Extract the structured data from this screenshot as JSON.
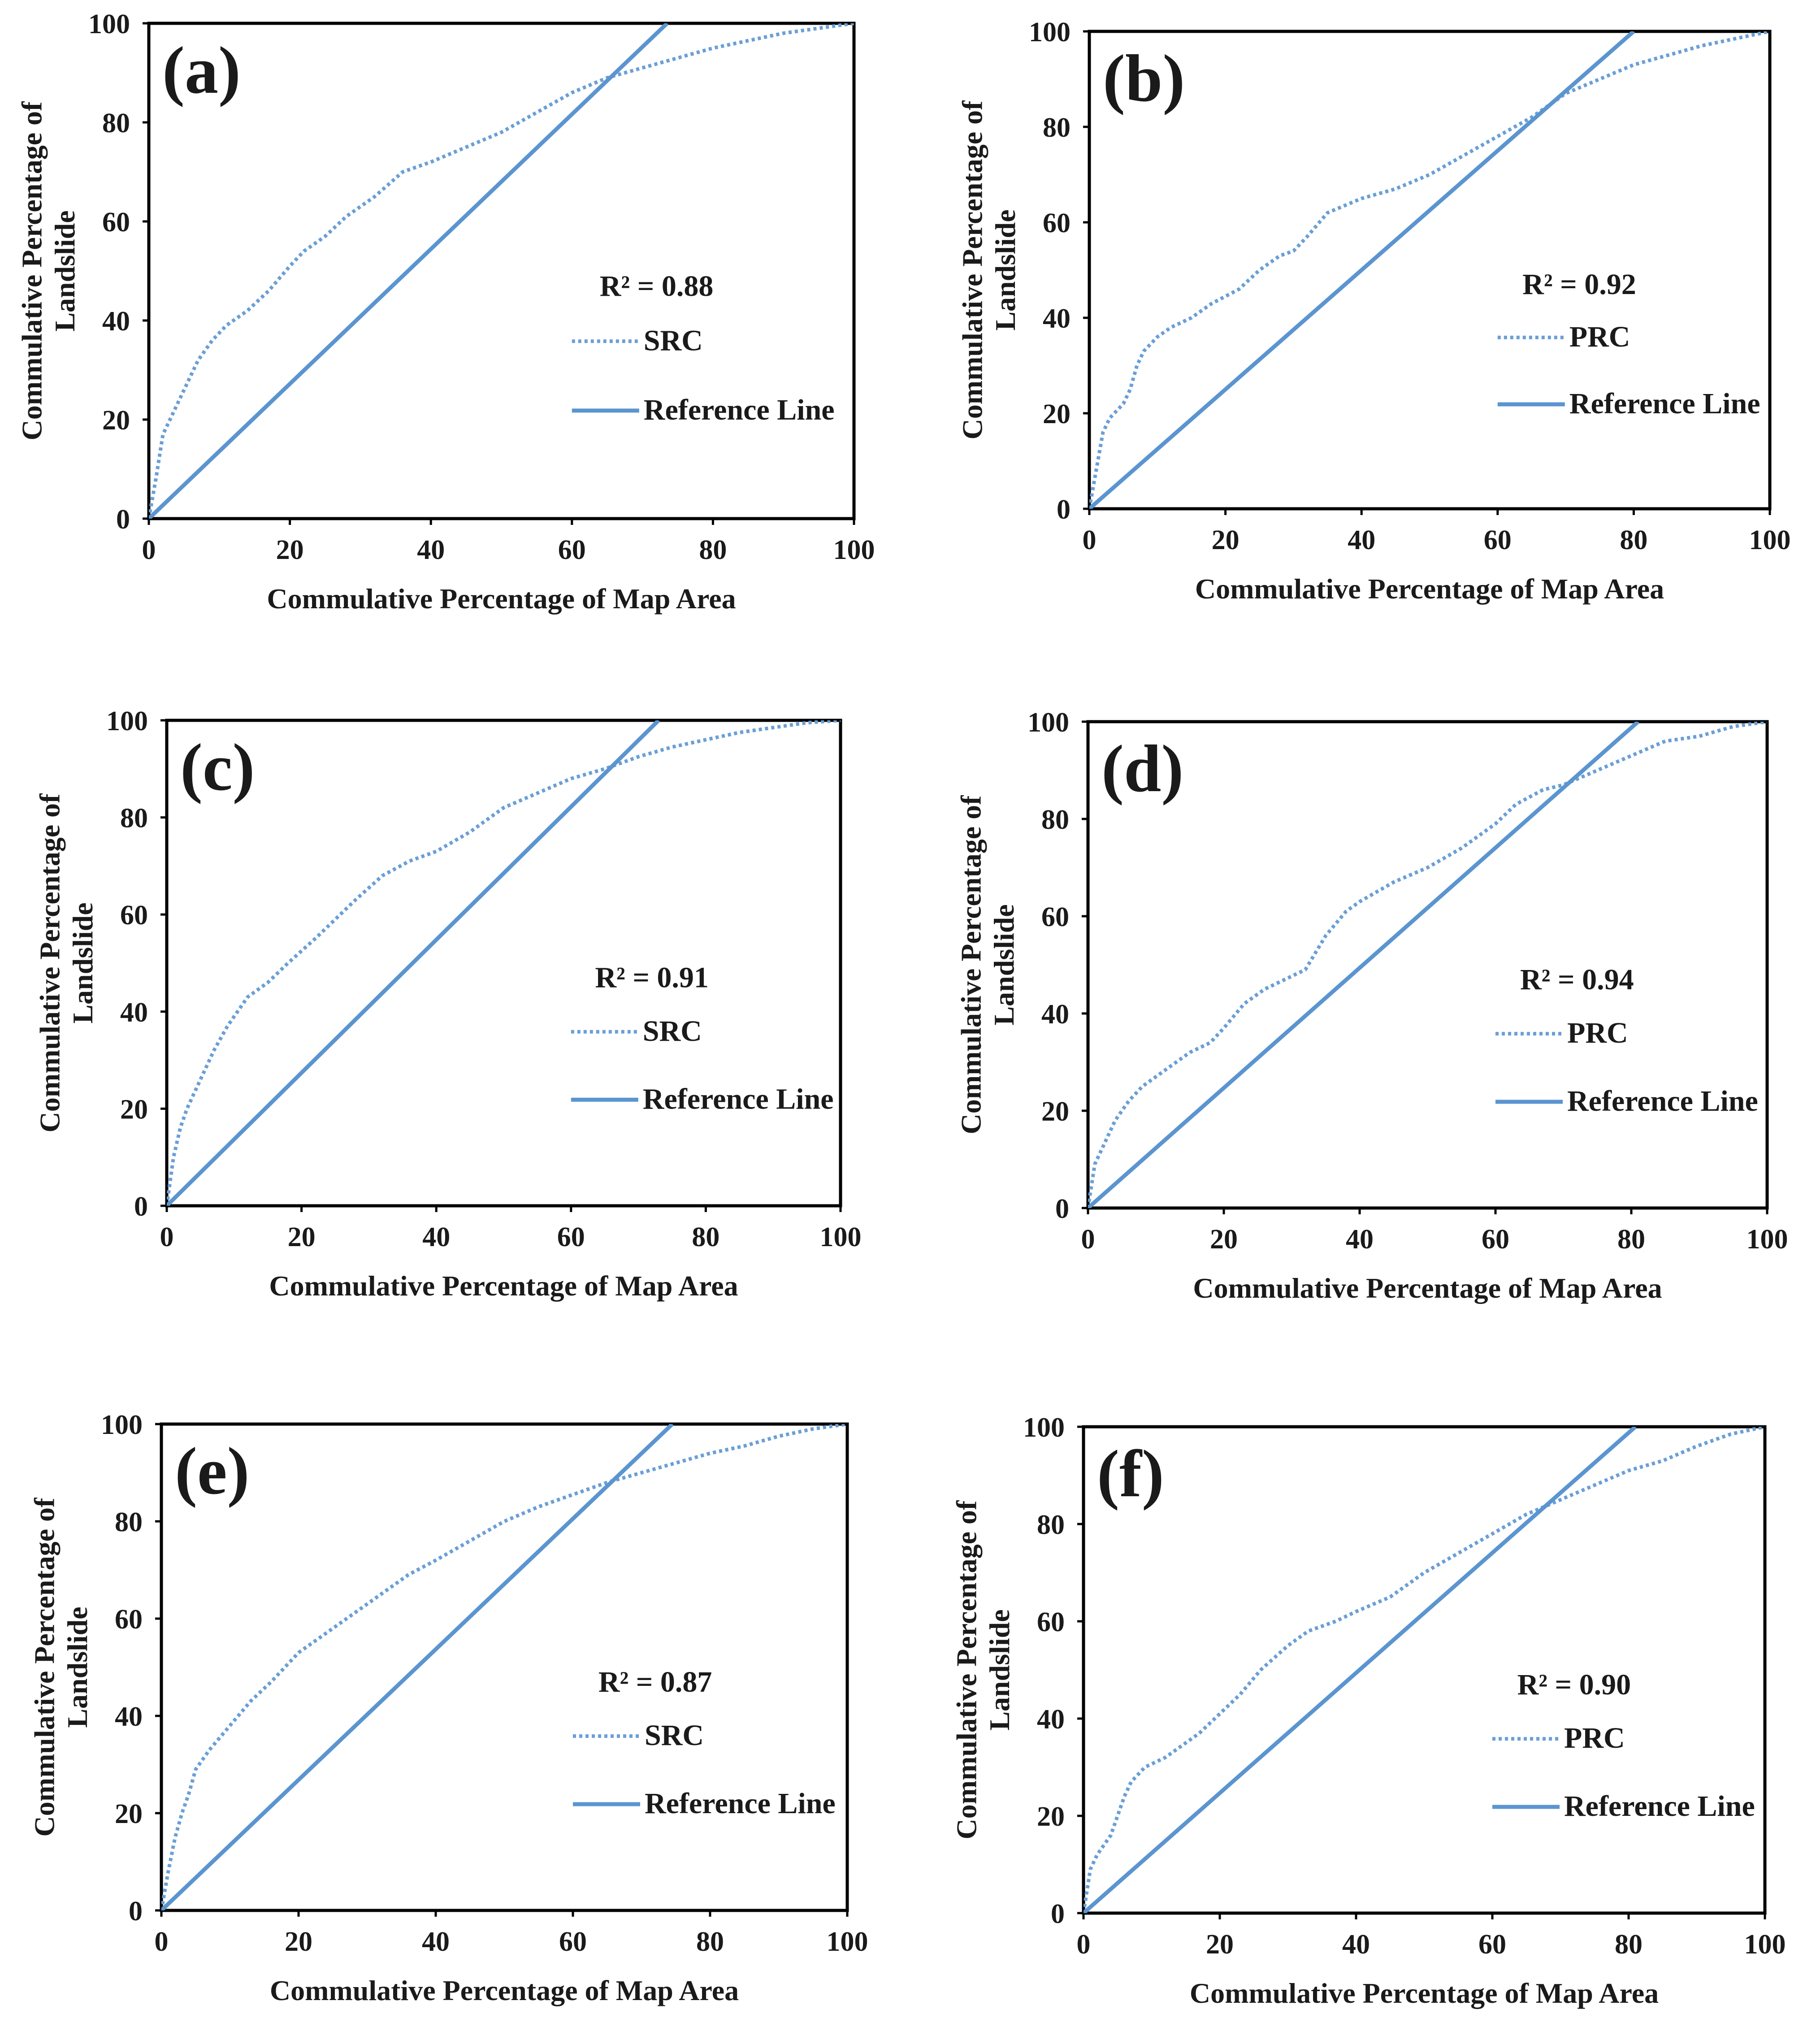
{
  "colors": {
    "curve": "#6a9fd6",
    "reference_line": "#5b95d0",
    "frame": "#000000",
    "text": "#1a1a1a"
  },
  "chart_data": [
    {
      "type": "line",
      "panel_label": "(a)",
      "xlabel": "Commulative Percentage of Map Area",
      "ylabel": "Commulative Percentage of Landslide",
      "xlim": [
        0,
        100
      ],
      "ylim": [
        0,
        100
      ],
      "x_ticks": [
        "0",
        "20",
        "40",
        "60",
        "80",
        "100"
      ],
      "y_ticks": [
        "0",
        "20",
        "40",
        "60",
        "80",
        "100"
      ],
      "annotation": "R² = 0.88",
      "legend": [
        "SRC",
        "Reference Line"
      ],
      "legend_position": "center-right",
      "grid": false,
      "series": [
        {
          "name": "SRC",
          "style": "dotted",
          "x": [
            0,
            1,
            2,
            3,
            5,
            7,
            9,
            11,
            14,
            17,
            20,
            22,
            25,
            28,
            32,
            36,
            40,
            45,
            50,
            55,
            60,
            65,
            70,
            75,
            80,
            85,
            90,
            95,
            100
          ],
          "y": [
            0,
            8,
            17,
            20,
            26,
            32,
            36,
            39,
            42,
            46,
            51,
            54,
            57,
            61,
            65,
            70,
            72,
            75,
            78,
            82,
            86,
            89,
            91,
            93,
            95,
            96.5,
            98,
            99,
            100
          ]
        },
        {
          "name": "Reference Line",
          "style": "solid",
          "x": [
            0,
            73.5
          ],
          "y": [
            0,
            100
          ]
        }
      ]
    },
    {
      "type": "line",
      "panel_label": "(b)",
      "xlabel": "Commulative Percentage of Map Area",
      "ylabel": "Commulative Percentage of Landslide",
      "xlim": [
        0,
        100
      ],
      "ylim": [
        0,
        100
      ],
      "x_ticks": [
        "0",
        "20",
        "40",
        "60",
        "80",
        "100"
      ],
      "y_ticks": [
        "0",
        "20",
        "40",
        "60",
        "80",
        "100"
      ],
      "annotation": "R² = 0.92",
      "legend": [
        "PRC",
        "Reference Line"
      ],
      "legend_position": "center-right",
      "grid": false,
      "series": [
        {
          "name": "PRC",
          "style": "dotted",
          "x": [
            0,
            1,
            2,
            3,
            5,
            6,
            7,
            8,
            10,
            12,
            15,
            18,
            22,
            25,
            28,
            30,
            32,
            35,
            40,
            45,
            50,
            55,
            60,
            65,
            70,
            75,
            80,
            85,
            90,
            95,
            100
          ],
          "y": [
            0,
            8,
            16,
            19,
            22,
            25,
            30,
            33,
            36,
            38,
            40,
            43,
            46,
            50,
            53,
            54,
            57,
            62,
            65,
            67,
            70,
            74,
            78,
            82,
            87,
            90,
            93,
            95,
            97,
            98.5,
            100
          ]
        },
        {
          "name": "Reference Line",
          "style": "solid",
          "x": [
            0,
            80
          ],
          "y": [
            0,
            100
          ]
        }
      ]
    },
    {
      "type": "line",
      "panel_label": "(c)",
      "xlabel": "Commulative Percentage of Map Area",
      "ylabel": "Commulative Percentage of Landslide",
      "xlim": [
        0,
        100
      ],
      "ylim": [
        0,
        100
      ],
      "x_ticks": [
        "0",
        "20",
        "40",
        "60",
        "80",
        "100"
      ],
      "y_ticks": [
        "0",
        "20",
        "40",
        "60",
        "80",
        "100"
      ],
      "annotation": "R² = 0.91",
      "legend": [
        "SRC",
        "Reference Line"
      ],
      "legend_position": "center-right",
      "grid": false,
      "series": [
        {
          "name": "SRC",
          "style": "dotted",
          "x": [
            0,
            1,
            2,
            3,
            5,
            7,
            9,
            12,
            15,
            18,
            22,
            25,
            28,
            32,
            36,
            40,
            45,
            50,
            55,
            60,
            65,
            70,
            75,
            80,
            85,
            90,
            95,
            100
          ],
          "y": [
            0,
            10,
            16,
            20,
            26,
            32,
            37,
            43,
            46,
            50,
            55,
            59,
            63,
            68,
            71,
            73,
            77,
            82,
            85,
            88,
            90,
            92.5,
            94.5,
            96,
            97.5,
            98.5,
            99.5,
            100
          ]
        },
        {
          "name": "Reference Line",
          "style": "solid",
          "x": [
            0,
            73
          ],
          "y": [
            0,
            100
          ]
        }
      ]
    },
    {
      "type": "line",
      "panel_label": "(d)",
      "xlabel": "Commulative Percentage of Map Area",
      "ylabel": "Commulative Percentage of Landslide",
      "xlim": [
        0,
        100
      ],
      "ylim": [
        0,
        100
      ],
      "x_ticks": [
        "0",
        "20",
        "40",
        "60",
        "80",
        "100"
      ],
      "y_ticks": [
        "0",
        "20",
        "40",
        "60",
        "80",
        "100"
      ],
      "annotation": "R² = 0.94",
      "legend": [
        "PRC",
        "Reference Line"
      ],
      "legend_position": "center-right",
      "grid": false,
      "series": [
        {
          "name": "PRC",
          "style": "dotted",
          "x": [
            0,
            1,
            2,
            4,
            6,
            8,
            10,
            13,
            15,
            18,
            20,
            23,
            26,
            29,
            32,
            35,
            38,
            40,
            45,
            50,
            55,
            60,
            63,
            67,
            70,
            75,
            80,
            85,
            90,
            95,
            100
          ],
          "y": [
            0,
            9,
            12,
            18,
            22,
            25,
            27,
            30,
            32,
            34,
            37,
            42,
            45,
            47,
            49,
            56,
            61,
            63,
            67,
            70,
            74,
            79,
            83,
            86,
            87,
            90,
            93,
            96,
            97,
            99,
            100
          ]
        },
        {
          "name": "Reference Line",
          "style": "solid",
          "x": [
            0,
            81
          ],
          "y": [
            0,
            100
          ]
        }
      ]
    },
    {
      "type": "line",
      "panel_label": "(e)",
      "xlabel": "Commulative Percentage of Map Area",
      "ylabel": "Commulative Percentage of Landslide",
      "xlim": [
        0,
        100
      ],
      "ylim": [
        0,
        100
      ],
      "x_ticks": [
        "0",
        "20",
        "40",
        "60",
        "80",
        "100"
      ],
      "y_ticks": [
        "0",
        "20",
        "40",
        "60",
        "80",
        "100"
      ],
      "annotation": "R² = 0.87",
      "legend": [
        "SRC",
        "Reference Line"
      ],
      "legend_position": "center-right",
      "grid": false,
      "series": [
        {
          "name": "SRC",
          "style": "dotted",
          "x": [
            0,
            1,
            2,
            3,
            4,
            5,
            7,
            10,
            13,
            16,
            20,
            24,
            28,
            32,
            36,
            40,
            45,
            50,
            55,
            60,
            65,
            70,
            75,
            80,
            85,
            90,
            95,
            100
          ],
          "y": [
            0,
            8,
            15,
            20,
            24,
            29,
            33,
            38,
            43,
            47,
            53,
            57,
            61,
            65,
            69,
            72,
            76,
            80,
            83,
            85.5,
            88,
            90,
            92,
            94,
            95.5,
            97.5,
            99,
            100
          ]
        },
        {
          "name": "Reference Line",
          "style": "solid",
          "x": [
            0,
            74.5
          ],
          "y": [
            0,
            100
          ]
        }
      ]
    },
    {
      "type": "line",
      "panel_label": "(f)",
      "xlabel": "Commulative Percentage of Map Area",
      "ylabel": "Commulative Percentage of Landslide",
      "xlim": [
        0,
        100
      ],
      "ylim": [
        0,
        100
      ],
      "x_ticks": [
        "0",
        "20",
        "40",
        "60",
        "80",
        "100"
      ],
      "y_ticks": [
        "0",
        "20",
        "40",
        "60",
        "80",
        "100"
      ],
      "annotation": "R² = 0.90",
      "legend": [
        "PRC",
        "Reference Line"
      ],
      "legend_position": "center-right",
      "grid": false,
      "series": [
        {
          "name": "PRC",
          "style": "dotted",
          "x": [
            0,
            1,
            2,
            4,
            5,
            6,
            7,
            9,
            12,
            15,
            17,
            20,
            23,
            26,
            30,
            33,
            37,
            40,
            45,
            50,
            55,
            60,
            65,
            70,
            75,
            80,
            85,
            90,
            95,
            100
          ],
          "y": [
            0,
            9,
            12,
            16,
            20,
            24,
            27,
            30,
            32,
            35,
            37,
            41,
            45,
            50,
            55,
            58,
            60,
            62,
            65,
            70,
            74,
            78,
            82,
            85,
            88,
            91,
            93,
            96,
            98.5,
            100
          ]
        },
        {
          "name": "Reference Line",
          "style": "solid",
          "x": [
            0,
            81
          ],
          "y": [
            0,
            100
          ]
        }
      ]
    }
  ]
}
